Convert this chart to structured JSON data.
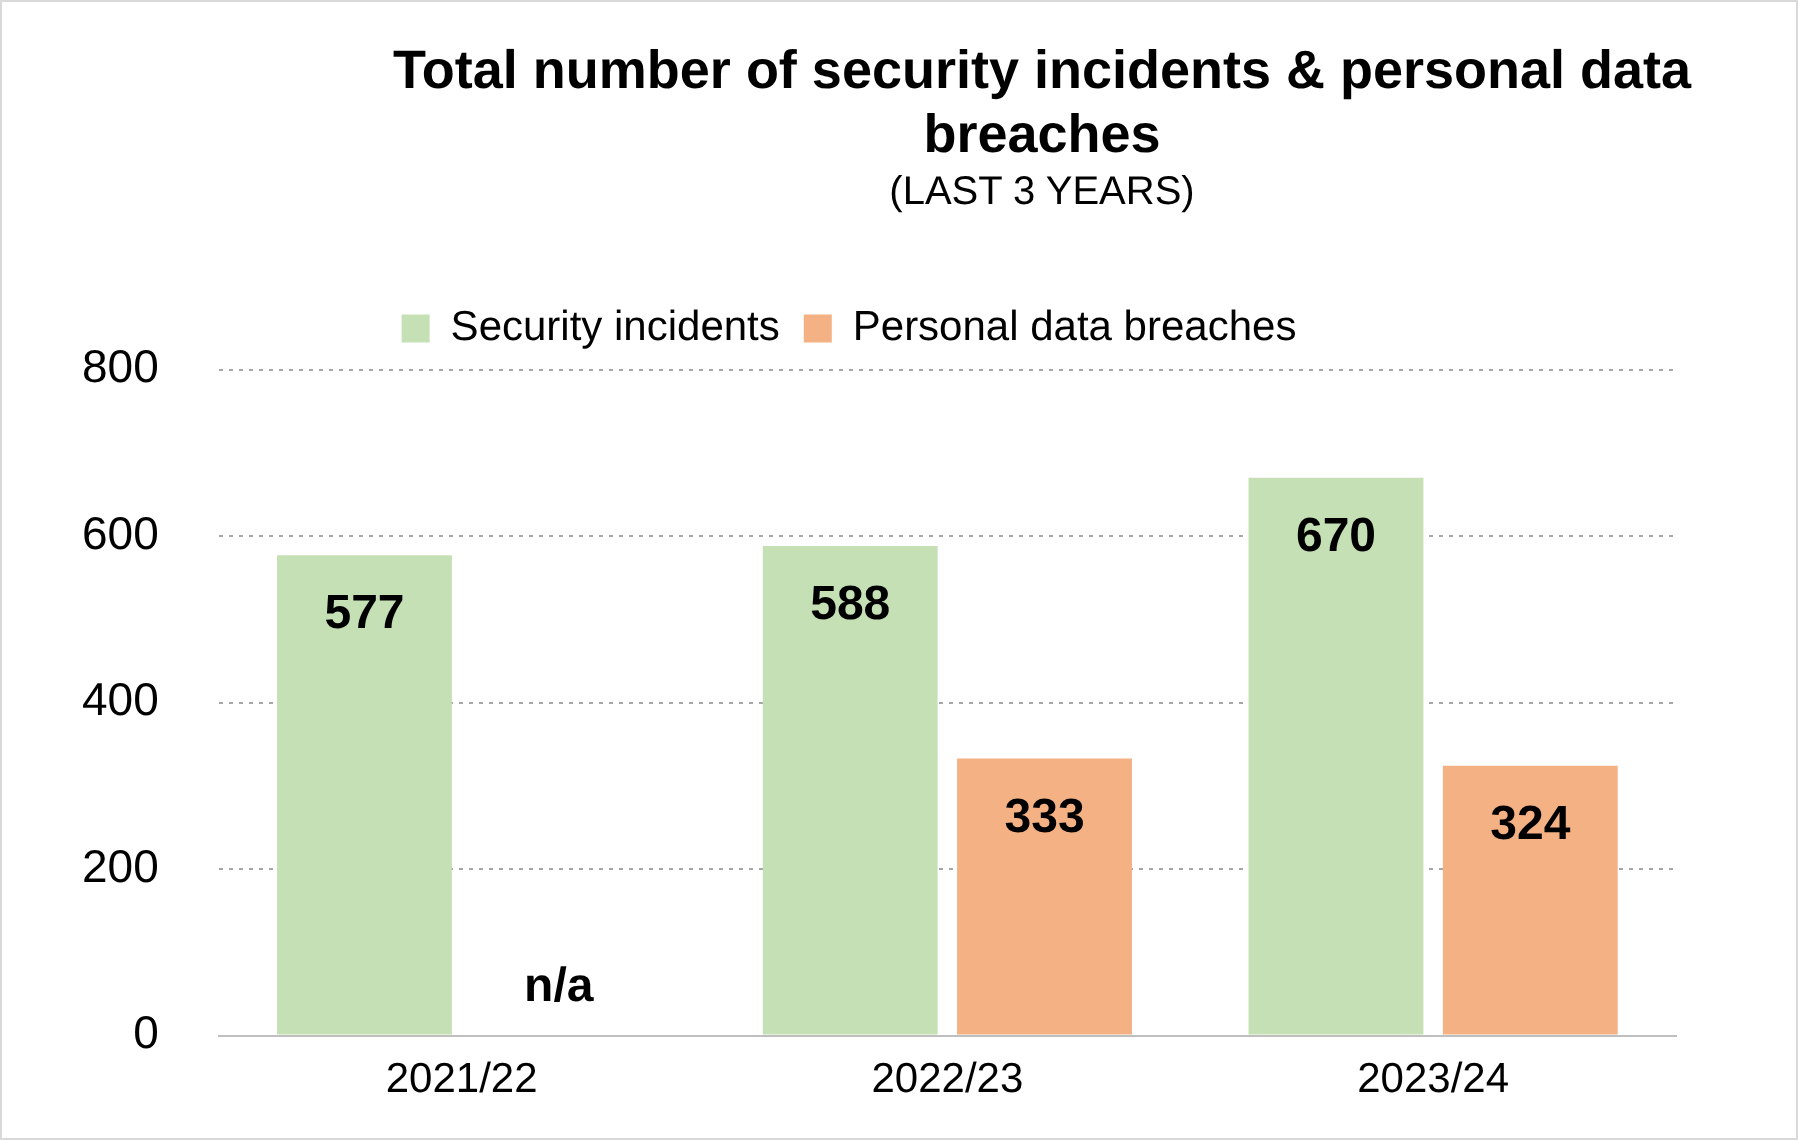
{
  "chart_data": {
    "type": "bar",
    "title": "Total number of security incidents & personal data breaches",
    "subtitle": "(LAST 3 YEARS)",
    "categories": [
      "2021/22",
      "2022/23",
      "2023/24"
    ],
    "series": [
      {
        "name": "Security incidents",
        "color": "#c5e0b4",
        "values": [
          577,
          588,
          670
        ],
        "value_labels": [
          "577",
          "588",
          "670"
        ]
      },
      {
        "name": "Personal data breaches",
        "color": "#f4b183",
        "values": [
          null,
          333,
          324
        ],
        "value_labels": [
          "n/a",
          "333",
          "324"
        ]
      }
    ],
    "ylim": [
      0,
      800
    ],
    "yticks": [
      0,
      200,
      400,
      600,
      800
    ],
    "grid": "y",
    "legend": "top"
  }
}
